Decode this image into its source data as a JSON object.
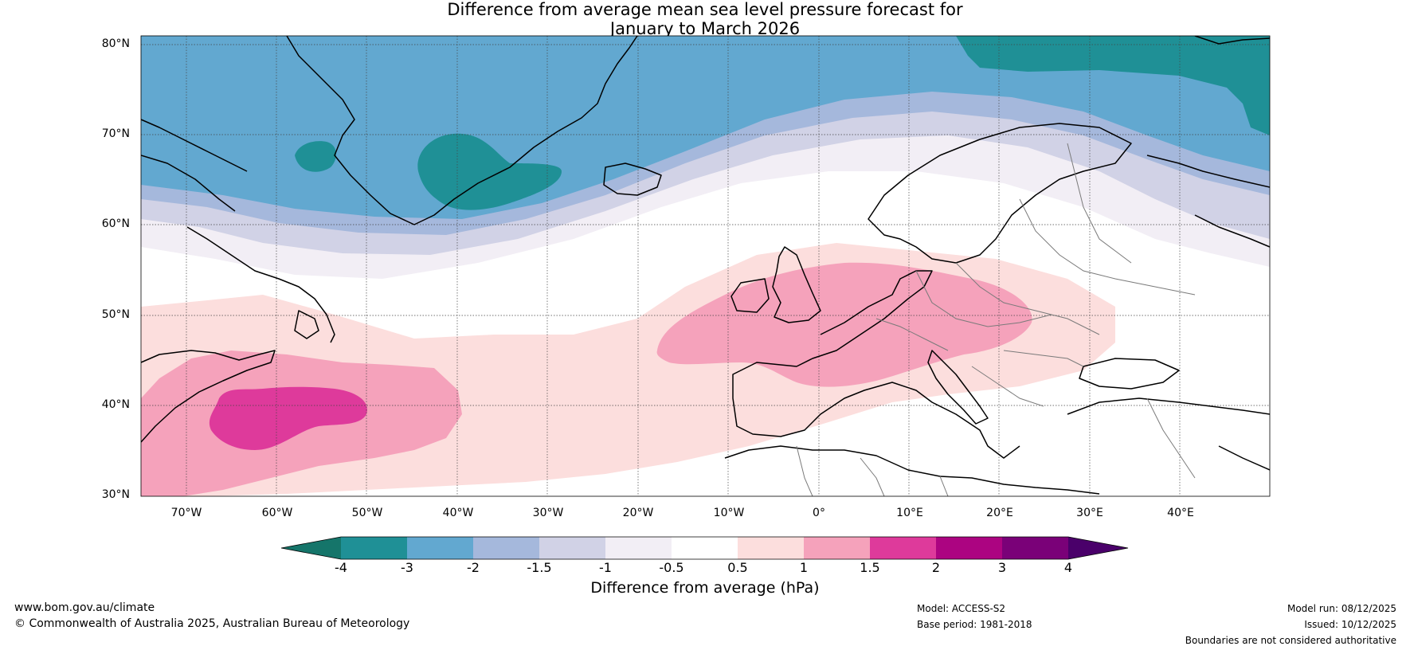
{
  "title": {
    "line1": "Difference from average mean sea level pressure forecast for",
    "line2": "January to March 2026"
  },
  "map": {
    "lat_labels": [
      "80°N",
      "70°N",
      "60°N",
      "50°N",
      "40°N",
      "30°N"
    ],
    "lon_labels": [
      "70°W",
      "60°W",
      "50°W",
      "40°W",
      "30°W",
      "20°W",
      "10°W",
      "0°",
      "10°E",
      "20°E",
      "30°E",
      "40°E"
    ],
    "lat_range": [
      30,
      81
    ],
    "lon_range": [
      -75,
      50
    ],
    "anomaly_regions": [
      "Negative anomaly over Greenland and the Arctic (-2 to -3 hPa)",
      "Positive anomaly over the North Atlantic off North America (+1.5 to +2 hPa)",
      "Positive anomaly over the British Isles and central Europe (+1 to +1.5 hPa)"
    ]
  },
  "colorbar": {
    "label": "Difference from average (hPa)",
    "ticks": [
      "-4",
      "-3",
      "-2",
      "-1.5",
      "-1",
      "-0.5",
      "0.5",
      "1",
      "1.5",
      "2",
      "3",
      "4"
    ],
    "colors": [
      "#15756a",
      "#1f9096",
      "#62a8d0",
      "#a5b8dc",
      "#d1d2e6",
      "#f2eef5",
      "#ffffff",
      "#fcdedd",
      "#f5a2bb",
      "#de3a9b",
      "#ac0481",
      "#7a0178",
      "#4a006a"
    ]
  },
  "footer": {
    "website": "www.bom.gov.au/climate",
    "copyright": "© Commonwealth of Australia 2025, Australian Bureau of Meteorology",
    "model": "Model: ACCESS-S2",
    "base_period": "Base period: 1981-2018",
    "model_run": "Model run: 08/12/2025",
    "issued": "Issued: 10/12/2025",
    "disclaimer": "Boundaries are not considered authoritative"
  }
}
